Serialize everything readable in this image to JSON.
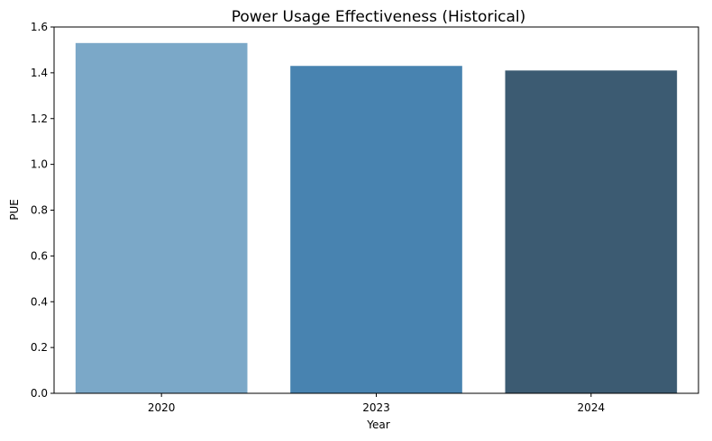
{
  "chart_data": {
    "type": "bar",
    "title": "Power Usage Effectiveness (Historical)",
    "xlabel": "Year",
    "ylabel": "PUE",
    "categories": [
      "2020",
      "2023",
      "2024"
    ],
    "values": [
      1.53,
      1.43,
      1.41
    ],
    "colors": [
      "#7ba8c8",
      "#4883b0",
      "#3c5b72"
    ],
    "ylim": [
      0,
      1.6
    ],
    "yticks": [
      0.0,
      0.2,
      0.4,
      0.6,
      0.8,
      1.0,
      1.2,
      1.4,
      1.6
    ],
    "ytick_labels": [
      "0.0",
      "0.2",
      "0.4",
      "0.6",
      "0.8",
      "1.0",
      "1.2",
      "1.4",
      "1.6"
    ],
    "grid": false,
    "legend": "none"
  }
}
